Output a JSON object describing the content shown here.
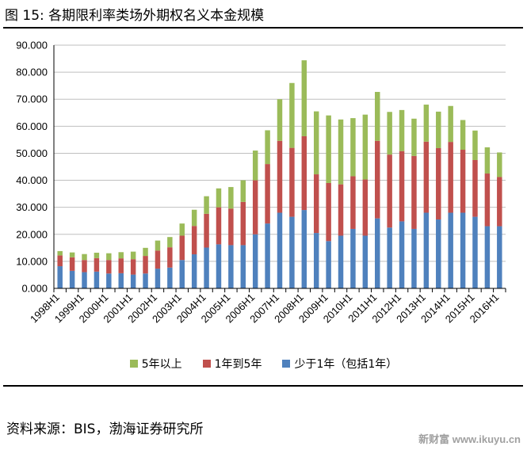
{
  "figure": {
    "title": "图 15:  各期限利率类场外期权名义本金规模",
    "source": "资料来源：BIS，渤海证券研究所",
    "watermark": "新财富 www.ikuyu.cn"
  },
  "colors": {
    "long": "#9BBB59",
    "mid": "#C0504D",
    "short": "#4F81BD"
  },
  "chart_data": {
    "type": "bar",
    "stacked": true,
    "title": "",
    "xlabel": "",
    "ylabel": "",
    "ylim": [
      0,
      90
    ],
    "yticks": [
      0,
      10,
      20,
      30,
      40,
      50,
      60,
      70,
      80,
      90
    ],
    "ytick_labels": [
      "0.000",
      "10.000",
      "20.000",
      "30.000",
      "40.000",
      "50.000",
      "60.000",
      "70.000",
      "80.000",
      "90.000"
    ],
    "grid": "horizontal",
    "legend_position": "bottom",
    "categories": [
      "1998H1",
      "1998H2",
      "1999H1",
      "1999H2",
      "2000H1",
      "2000H2",
      "2001H1",
      "2001H2",
      "2002H1",
      "2002H2",
      "2003H1",
      "2003H2",
      "2004H1",
      "2004H2",
      "2005H1",
      "2005H2",
      "2006H1",
      "2006H2",
      "2007H1",
      "2007H2",
      "2008H1",
      "2008H2",
      "2009H1",
      "2009H2",
      "2010H1",
      "2010H2",
      "2011H1",
      "2011H2",
      "2012H1",
      "2012H2",
      "2013H1",
      "2013H2",
      "2014H1",
      "2014H2",
      "2015H1",
      "2015H2",
      "2016H1"
    ],
    "xtick_labels": [
      "1998H1",
      "",
      "1999H1",
      "",
      "2000H1",
      "",
      "2001H1",
      "",
      "2002H1",
      "",
      "2003H1",
      "",
      "2004H1",
      "",
      "2005H1",
      "",
      "2006H1",
      "",
      "2007H1",
      "",
      "2008H1",
      "",
      "2009H1",
      "",
      "2010H1",
      "",
      "2011H1",
      "",
      "2012H1",
      "",
      "2013H1",
      "",
      "2014H1",
      "",
      "2015H1",
      "",
      "2016H1"
    ],
    "series": [
      {
        "name": "少于1年（包括1年）",
        "color_key": "short",
        "values": [
          8.2,
          6.5,
          6.0,
          6.2,
          5.5,
          5.6,
          5.1,
          5.5,
          7.3,
          7.7,
          10.5,
          12.6,
          15.1,
          16.3,
          16.0,
          16.0,
          20.0,
          24.0,
          28.0,
          26.5,
          29.0,
          20.5,
          17.5,
          19.5,
          22.0,
          19.5,
          25.9,
          22.5,
          24.8,
          22.0,
          28.0,
          25.5,
          28.0,
          28.0,
          26.5,
          23.0,
          23.0
        ]
      },
      {
        "name": "1年到5年",
        "color_key": "mid",
        "values": [
          4.0,
          5.0,
          4.5,
          5.0,
          5.0,
          5.5,
          5.7,
          6.5,
          6.7,
          7.5,
          9.0,
          10.5,
          12.5,
          13.7,
          13.5,
          16.0,
          20.0,
          22.0,
          26.6,
          25.5,
          27.3,
          21.7,
          21.5,
          19.0,
          19.5,
          20.8,
          28.7,
          27.0,
          26.0,
          27.0,
          26.3,
          26.4,
          26.2,
          23.3,
          21.0,
          19.5,
          18.2
        ]
      },
      {
        "name": "5年以上",
        "color_key": "long",
        "values": [
          1.6,
          1.8,
          2.2,
          2.0,
          2.5,
          2.3,
          2.8,
          3.0,
          3.7,
          3.8,
          4.5,
          6.0,
          6.5,
          7.0,
          8.0,
          8.0,
          11.0,
          12.5,
          15.4,
          24.0,
          28.1,
          23.3,
          25.0,
          24.0,
          21.5,
          24.0,
          18.1,
          15.8,
          15.2,
          13.8,
          13.7,
          13.5,
          13.3,
          11.0,
          10.9,
          9.7,
          9.1
        ]
      }
    ],
    "legend_order": [
      "5年以上",
      "1年到5年",
      "少于1年（包括1年）"
    ]
  }
}
